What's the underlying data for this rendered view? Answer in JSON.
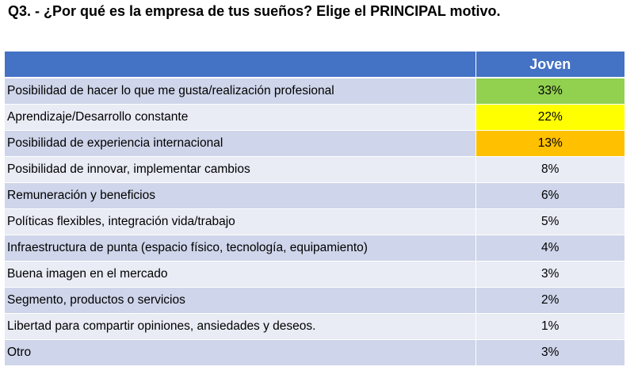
{
  "title": "Q3. - ¿Por qué es la empresa de tus sueños? Elige el PRINCIPAL motivo.",
  "colors": {
    "header_bg": "#4472c4",
    "row_odd": "#cfd5ea",
    "row_even": "#e9ebf5",
    "highlight_1": "#92d050",
    "highlight_2": "#ffff00",
    "highlight_3": "#ffc000"
  },
  "chart_data": {
    "type": "table",
    "title": "Q3. - ¿Por qué es la empresa de tus sueños? Elige el PRINCIPAL motivo.",
    "columns": [
      "",
      "Joven"
    ],
    "rows": [
      {
        "label": "Posibilidad de hacer lo que me gusta/realización profesional",
        "value": "33%",
        "highlight": "#92d050"
      },
      {
        "label": "Aprendizaje/Desarrollo constante",
        "value": "22%",
        "highlight": "#ffff00"
      },
      {
        "label": "Posibilidad de experiencia internacional",
        "value": "13%",
        "highlight": "#ffc000"
      },
      {
        "label": "Posibilidad de innovar, implementar cambios",
        "value": "8%"
      },
      {
        "label": "Remuneración y beneficios",
        "value": "6%"
      },
      {
        "label": "Políticas flexibles, integración vida/trabajo",
        "value": "5%"
      },
      {
        "label": "Infraestructura de punta (espacio físico, tecnología, equipamiento)",
        "value": "4%"
      },
      {
        "label": "Buena imagen en el mercado",
        "value": "3%"
      },
      {
        "label": "Segmento, productos o servicios",
        "value": "2%"
      },
      {
        "label": "Libertad para compartir opiniones, ansiedades y deseos.",
        "value": "1%"
      },
      {
        "label": "Otro",
        "value": "3%"
      }
    ]
  }
}
